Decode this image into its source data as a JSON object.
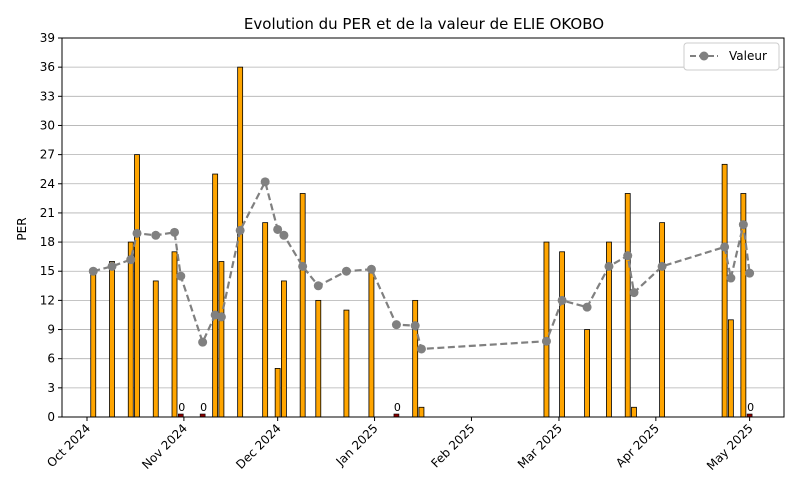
{
  "chart_data": {
    "type": "bar+line",
    "title": "Evolution du PER et de la valeur de ELIE OKOBO",
    "ylabel": "PER",
    "xlabel": "",
    "ylim": [
      0,
      39
    ],
    "yticks": [
      0,
      3,
      6,
      9,
      12,
      15,
      18,
      21,
      24,
      27,
      30,
      33,
      36,
      39
    ],
    "xlim": [
      "2024-09-23",
      "2025-05-12"
    ],
    "xticks": [
      {
        "date": "2024-10-01",
        "label": "Oct 2024"
      },
      {
        "date": "2024-11-01",
        "label": "Nov 2024"
      },
      {
        "date": "2024-12-01",
        "label": "Dec 2024"
      },
      {
        "date": "2025-01-01",
        "label": "Jan 2025"
      },
      {
        "date": "2025-02-01",
        "label": "Feb 2025"
      },
      {
        "date": "2025-03-01",
        "label": "Mar 2025"
      },
      {
        "date": "2025-04-01",
        "label": "Apr 2025"
      },
      {
        "date": "2025-05-01",
        "label": "May 2025"
      }
    ],
    "grid": "horizontal",
    "legend": {
      "position": "top-right",
      "entries": [
        "Valeur"
      ]
    },
    "bar_color": "#FFA500",
    "zero_bar_color": "#8B0000",
    "line_color": "#808080",
    "bars": [
      {
        "date": "2024-10-03",
        "per": 15
      },
      {
        "date": "2024-10-09",
        "per": 16
      },
      {
        "date": "2024-10-15",
        "per": 18
      },
      {
        "date": "2024-10-17",
        "per": 27
      },
      {
        "date": "2024-10-23",
        "per": 14
      },
      {
        "date": "2024-10-29",
        "per": 17
      },
      {
        "date": "2024-10-31",
        "per": 0
      },
      {
        "date": "2024-11-07",
        "per": 0
      },
      {
        "date": "2024-11-11",
        "per": 25
      },
      {
        "date": "2024-11-13",
        "per": 16
      },
      {
        "date": "2024-11-19",
        "per": 36
      },
      {
        "date": "2024-11-27",
        "per": 20
      },
      {
        "date": "2024-12-01",
        "per": 5
      },
      {
        "date": "2024-12-03",
        "per": 14
      },
      {
        "date": "2024-12-09",
        "per": 23
      },
      {
        "date": "2024-12-14",
        "per": 12
      },
      {
        "date": "2024-12-23",
        "per": 11
      },
      {
        "date": "2024-12-31",
        "per": 15
      },
      {
        "date": "2025-01-08",
        "per": 0
      },
      {
        "date": "2025-01-14",
        "per": 12
      },
      {
        "date": "2025-01-16",
        "per": 1
      },
      {
        "date": "2025-02-25",
        "per": 18
      },
      {
        "date": "2025-03-02",
        "per": 17
      },
      {
        "date": "2025-03-10",
        "per": 9
      },
      {
        "date": "2025-03-17",
        "per": 18
      },
      {
        "date": "2025-03-23",
        "per": 23
      },
      {
        "date": "2025-03-25",
        "per": 1
      },
      {
        "date": "2025-04-03",
        "per": 20
      },
      {
        "date": "2025-04-23",
        "per": 26
      },
      {
        "date": "2025-04-25",
        "per": 10
      },
      {
        "date": "2025-04-29",
        "per": 23
      },
      {
        "date": "2025-05-01",
        "per": 0
      }
    ],
    "series": [
      {
        "name": "Valeur",
        "points": [
          {
            "date": "2024-10-03",
            "value": 15
          },
          {
            "date": "2024-10-09",
            "value": 15.5
          },
          {
            "date": "2024-10-15",
            "value": 16.2
          },
          {
            "date": "2024-10-17",
            "value": 18.9
          },
          {
            "date": "2024-10-23",
            "value": 18.7
          },
          {
            "date": "2024-10-29",
            "value": 19
          },
          {
            "date": "2024-10-31",
            "value": 14.5
          },
          {
            "date": "2024-11-07",
            "value": 7.7
          },
          {
            "date": "2024-11-11",
            "value": 10.5
          },
          {
            "date": "2024-11-13",
            "value": 10.3
          },
          {
            "date": "2024-11-19",
            "value": 19.2
          },
          {
            "date": "2024-11-27",
            "value": 24.2
          },
          {
            "date": "2024-12-01",
            "value": 19.3
          },
          {
            "date": "2024-12-03",
            "value": 18.7
          },
          {
            "date": "2024-12-09",
            "value": 15.5
          },
          {
            "date": "2024-12-14",
            "value": 13.5
          },
          {
            "date": "2024-12-23",
            "value": 15
          },
          {
            "date": "2024-12-31",
            "value": 15.2
          },
          {
            "date": "2025-01-08",
            "value": 9.5
          },
          {
            "date": "2025-01-14",
            "value": 9.4
          },
          {
            "date": "2025-01-16",
            "value": 7
          },
          {
            "date": "2025-02-25",
            "value": 7.8
          },
          {
            "date": "2025-03-02",
            "value": 12
          },
          {
            "date": "2025-03-10",
            "value": 11.3
          },
          {
            "date": "2025-03-17",
            "value": 15.5
          },
          {
            "date": "2025-03-23",
            "value": 16.6
          },
          {
            "date": "2025-03-25",
            "value": 12.8
          },
          {
            "date": "2025-04-03",
            "value": 15.5
          },
          {
            "date": "2025-04-23",
            "value": 17.5
          },
          {
            "date": "2025-04-25",
            "value": 14.3
          },
          {
            "date": "2025-04-29",
            "value": 19.8
          },
          {
            "date": "2025-05-01",
            "value": 14.8
          }
        ]
      }
    ]
  }
}
